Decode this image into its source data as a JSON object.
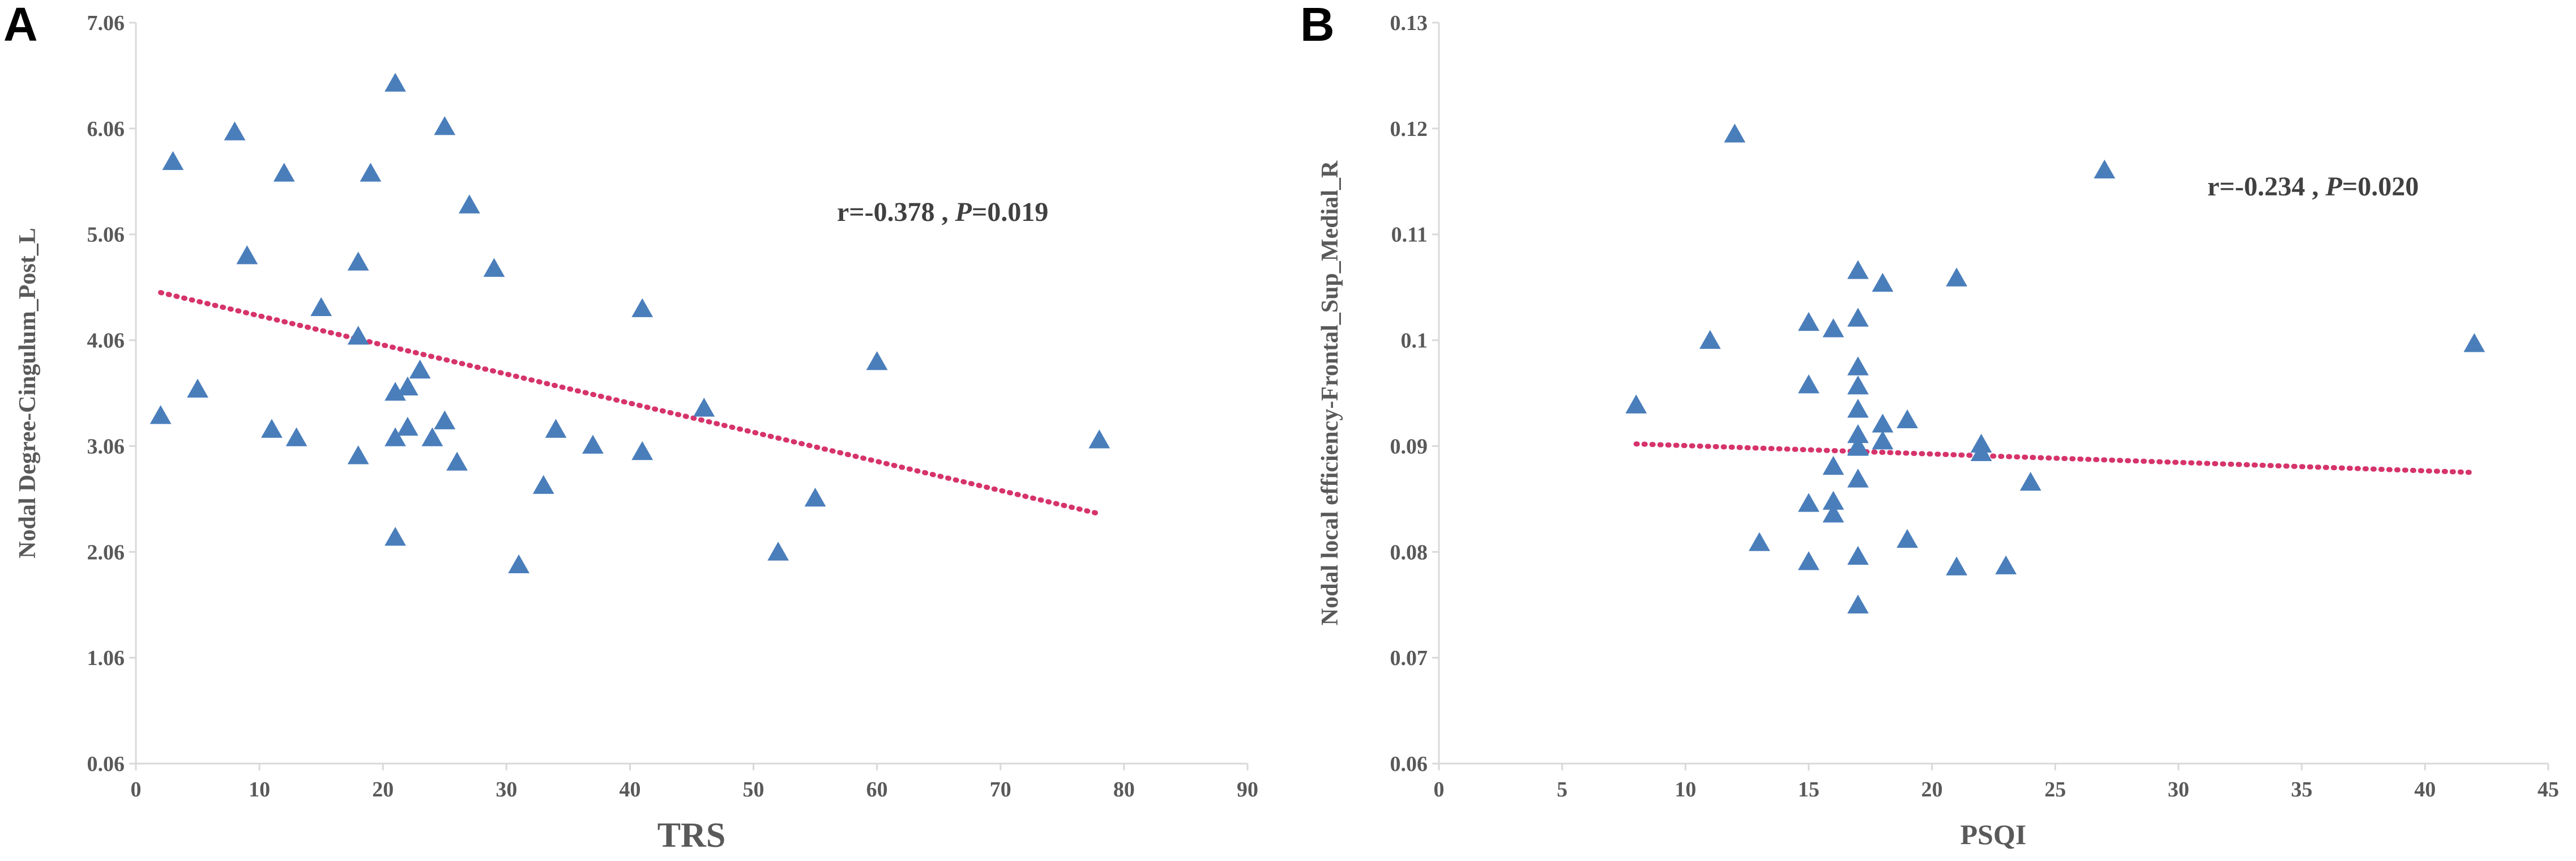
{
  "chart_data": [
    {
      "type": "scatter",
      "panel_label": "A",
      "title": "",
      "xlabel": "TRS",
      "ylabel": "Nodal Degree-Cingulum_Post_L",
      "xlim": [
        0,
        90
      ],
      "ylim": [
        0.06,
        7.06
      ],
      "x_ticks": [
        0,
        10,
        20,
        30,
        40,
        50,
        60,
        70,
        80,
        90
      ],
      "y_ticks": [
        0.06,
        1.06,
        2.06,
        3.06,
        4.06,
        5.06,
        6.06,
        7.06
      ],
      "x_tick_labels": [
        "0",
        "10",
        "20",
        "30",
        "40",
        "50",
        "60",
        "70",
        "80",
        "90"
      ],
      "y_tick_labels": [
        "0.06",
        "1.06",
        "2.06",
        "3.06",
        "4.06",
        "5.06",
        "6.06",
        "7.06"
      ],
      "annotation": {
        "r_text": "r=-0.378 , ",
        "p_symbol": "P",
        "p_text": "=0.019"
      },
      "trendline": {
        "x": [
          2,
          78
        ],
        "y": [
          4.51,
          2.42
        ]
      },
      "points": {
        "x": [
          2,
          3,
          5,
          8,
          9,
          11,
          12,
          13,
          15,
          18,
          18,
          18,
          19,
          21,
          21,
          21,
          21,
          22,
          22,
          23,
          24,
          25,
          25,
          26,
          27,
          29,
          31,
          33,
          34,
          37,
          41,
          41,
          46,
          52,
          55,
          60,
          78
        ],
        "y": [
          3.35,
          5.75,
          3.6,
          6.03,
          4.86,
          3.22,
          5.64,
          3.14,
          4.37,
          4.8,
          4.1,
          2.97,
          5.64,
          6.49,
          3.57,
          3.14,
          2.2,
          3.62,
          3.24,
          3.78,
          3.14,
          6.08,
          3.3,
          2.91,
          5.34,
          4.74,
          1.94,
          2.69,
          3.22,
          3.07,
          4.36,
          3.01,
          3.42,
          2.06,
          2.57,
          3.86,
          3.12
        ]
      }
    },
    {
      "type": "scatter",
      "panel_label": "B",
      "title": "",
      "xlabel": "PSQI",
      "ylabel": "Nodal  local efficiency-Frontal_Sup_Medial_R",
      "xlim": [
        0,
        45
      ],
      "ylim": [
        0.06,
        0.13
      ],
      "x_ticks": [
        0,
        5,
        10,
        15,
        20,
        25,
        30,
        35,
        40,
        45
      ],
      "y_ticks": [
        0.06,
        0.07,
        0.08,
        0.09,
        0.1,
        0.11,
        0.12,
        0.13
      ],
      "x_tick_labels": [
        "0",
        "5",
        "10",
        "15",
        "20",
        "25",
        "30",
        "35",
        "40",
        "45"
      ],
      "y_tick_labels": [
        "0.06",
        "0.07",
        "0.08",
        "0.09",
        "0.1",
        "0.11",
        "0.12",
        "0.13"
      ],
      "annotation": {
        "r_text": "r=-0.234 , ",
        "p_symbol": "P",
        "p_text": "=0.020"
      },
      "trendline": {
        "x": [
          8,
          42
        ],
        "y": [
          0.0902,
          0.0875
        ]
      },
      "points": {
        "x": [
          8,
          11,
          12,
          13,
          15,
          15,
          15,
          15,
          16,
          16,
          16,
          16,
          17,
          17,
          17,
          17,
          17,
          17,
          17,
          17,
          17,
          17,
          17,
          18,
          18,
          18,
          19,
          19,
          21,
          21,
          22,
          22,
          23,
          24,
          27,
          42
        ],
        "y": [
          0.0939,
          0.1,
          0.1195,
          0.0809,
          0.1017,
          0.0958,
          0.0846,
          0.0791,
          0.1011,
          0.0881,
          0.0848,
          0.0836,
          0.1066,
          0.1021,
          0.0975,
          0.0957,
          0.0935,
          0.0911,
          0.0899,
          0.0869,
          0.0796,
          0.075,
          0.09,
          0.1054,
          0.0921,
          0.0905,
          0.0925,
          0.0812,
          0.1059,
          0.0786,
          0.0902,
          0.0894,
          0.0787,
          0.0866,
          0.1161,
          0.0997
        ]
      }
    }
  ]
}
